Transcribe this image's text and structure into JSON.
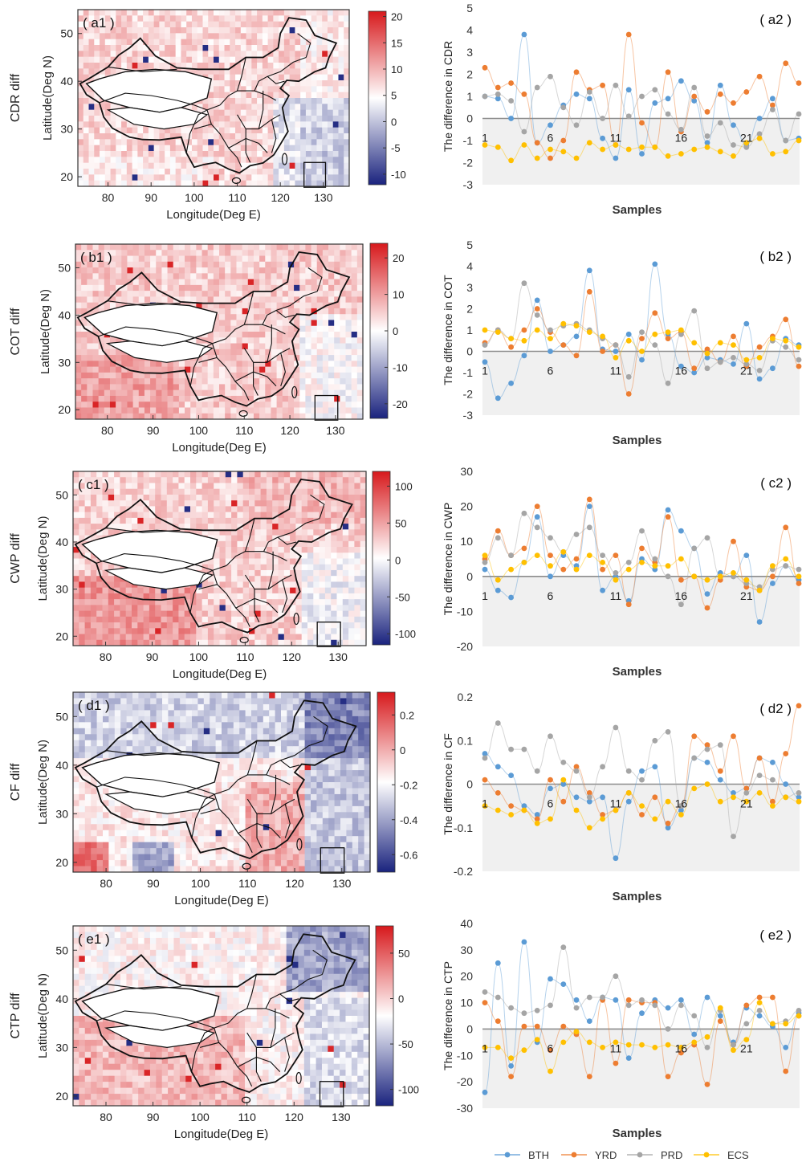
{
  "chart_data": [
    {
      "panel": "a1",
      "type": "heatmap",
      "panel_label": "( a1 )",
      "row_label": "CDR diff",
      "xlabel": "Longitude(Deg E)",
      "ylabel": "Latitude(Deg N)",
      "xticks": [
        "80",
        "90",
        "100",
        "110",
        "120",
        "130"
      ],
      "yticks": [
        "20",
        "30",
        "40",
        "50"
      ],
      "xlim": [
        73,
        136
      ],
      "ylim": [
        18,
        55
      ],
      "colorbar_ticks": [
        "20",
        "15",
        "10",
        "5",
        "0",
        "-5",
        "-10"
      ],
      "colorbar_range": [
        -12,
        21
      ],
      "pattern": "mostly weak positive over land and west; negative (blue) over sea to the east and south-east",
      "map_features": [
        "China province boundaries",
        "South China Sea inset box"
      ]
    },
    {
      "panel": "a2",
      "type": "line",
      "panel_label": "( a2 )",
      "xlabel": "Samples",
      "ylabel": "The difference in CDR",
      "ylim": [
        -3,
        5
      ],
      "yticks": [
        "5",
        "4",
        "3",
        "2",
        "1",
        "0",
        "-1",
        "-2",
        "-3"
      ],
      "xticks": [
        "1",
        "6",
        "11",
        "16",
        "21"
      ],
      "series": [
        {
          "name": "BTH",
          "color": "#5b9bd5",
          "values": [
            1.0,
            0.9,
            0.0,
            3.8,
            -1.1,
            -0.3,
            0.6,
            1.1,
            0.9,
            -0.9,
            -1.8,
            1.3,
            -1.6,
            0.7,
            0.9,
            1.7,
            0.8,
            -1.1,
            1.5,
            -0.3,
            -1.2,
            0.0,
            0.9,
            -1.0,
            -0.9
          ]
        },
        {
          "name": "YRD",
          "color": "#ed7d31",
          "values": [
            2.3,
            1.4,
            1.6,
            1.1,
            -1.1,
            -1.8,
            -1.0,
            2.1,
            1.3,
            1.5,
            -1.2,
            3.8,
            -0.2,
            -1.3,
            2.1,
            -0.6,
            1.0,
            0.3,
            1.1,
            0.7,
            1.2,
            1.9,
            0.6,
            2.5,
            1.6
          ]
        },
        {
          "name": "PRD",
          "color": "#a5a5a5",
          "values": [
            1.0,
            1.1,
            0.8,
            -0.6,
            1.4,
            1.9,
            0.5,
            -0.3,
            1.2,
            0.0,
            1.5,
            0.1,
            1.0,
            1.3,
            0.2,
            -0.5,
            1.4,
            -0.8,
            -0.2,
            -1.2,
            -1.3,
            -0.7,
            0.4,
            -1.0,
            0.2
          ]
        },
        {
          "name": "ECS",
          "color": "#ffc000",
          "values": [
            -1.2,
            -1.3,
            -1.9,
            -1.2,
            -1.8,
            -1.4,
            -1.5,
            -1.8,
            -1.1,
            -1.4,
            -1.2,
            -1.4,
            -1.3,
            -1.3,
            -1.7,
            -1.6,
            -1.4,
            -1.3,
            -1.5,
            -1.7,
            -1.1,
            -0.9,
            -1.6,
            -1.5,
            -1.0
          ]
        }
      ]
    },
    {
      "panel": "b1",
      "type": "heatmap",
      "panel_label": "( b1 )",
      "row_label": "COT diff",
      "xlabel": "Longitude(Deg E)",
      "ylabel": "Latitude(Deg N)",
      "xticks": [
        "80",
        "90",
        "100",
        "110",
        "120",
        "130"
      ],
      "yticks": [
        "20",
        "30",
        "40",
        "50"
      ],
      "xlim": [
        73,
        136
      ],
      "ylim": [
        18,
        55
      ],
      "colorbar_ticks": [
        "20",
        "10",
        "0",
        "-10",
        "-20"
      ],
      "colorbar_range": [
        -24,
        24
      ],
      "pattern": "widespread positive (red), strongest over south-west and Tibetan plateau margins",
      "map_features": [
        "China province boundaries",
        "South China Sea inset box"
      ]
    },
    {
      "panel": "b2",
      "type": "line",
      "panel_label": "( b2 )",
      "xlabel": "Samples",
      "ylabel": "The difference in COT",
      "ylim": [
        -3,
        5
      ],
      "yticks": [
        "5",
        "4",
        "3",
        "2",
        "1",
        "0",
        "-1",
        "-2",
        "-3"
      ],
      "xticks": [
        "1",
        "6",
        "11",
        "16",
        "21"
      ],
      "series": [
        {
          "name": "BTH",
          "color": "#5b9bd5",
          "values": [
            -0.5,
            -2.2,
            -1.5,
            -0.2,
            2.4,
            0.0,
            0.3,
            0.7,
            3.8,
            0.1,
            0.0,
            0.8,
            -0.4,
            4.1,
            0.8,
            -0.7,
            -1.0,
            -0.3,
            -0.4,
            -0.6,
            1.3,
            -1.3,
            -0.8,
            0.6,
            0.3
          ]
        },
        {
          "name": "YRD",
          "color": "#ed7d31",
          "values": [
            0.4,
            1.0,
            0.2,
            1.0,
            2.0,
            0.9,
            0.3,
            -0.2,
            2.8,
            0.0,
            0.3,
            -2.0,
            0.6,
            1.8,
            0.6,
            0.9,
            -0.8,
            0.1,
            -0.5,
            0.7,
            -0.7,
            0.2,
            0.7,
            1.5,
            -0.7
          ]
        },
        {
          "name": "PRD",
          "color": "#a5a5a5",
          "values": [
            0.3,
            1.0,
            0.6,
            3.2,
            1.7,
            1.0,
            1.2,
            1.3,
            1.0,
            0.6,
            0.3,
            -1.2,
            0.9,
            0.3,
            -1.5,
            0.8,
            1.9,
            -0.8,
            -0.5,
            -0.3,
            -0.6,
            -0.9,
            0.5,
            0.2,
            -0.4
          ]
        },
        {
          "name": "ECS",
          "color": "#ffc000",
          "values": [
            1.0,
            0.9,
            0.6,
            0.5,
            1.0,
            0.6,
            1.3,
            1.2,
            0.9,
            0.7,
            -0.3,
            0.5,
            0.0,
            0.8,
            0.9,
            1.0,
            0.4,
            -0.1,
            0.4,
            0.3,
            -0.4,
            -0.3,
            0.6,
            0.5,
            0.2
          ]
        }
      ]
    },
    {
      "panel": "c1",
      "type": "heatmap",
      "panel_label": "( c1 )",
      "row_label": "CWP diff",
      "xlabel": "Longitude(Deg E)",
      "ylabel": "Latitude(Deg N)",
      "xticks": [
        "80",
        "90",
        "100",
        "110",
        "120",
        "130"
      ],
      "yticks": [
        "20",
        "30",
        "40",
        "50"
      ],
      "xlim": [
        73,
        136
      ],
      "ylim": [
        18,
        55
      ],
      "colorbar_ticks": [
        "100",
        "50",
        "0",
        "-50",
        "-100"
      ],
      "colorbar_range": [
        -115,
        120
      ],
      "pattern": "positive over land, especially south-west and north-east; near zero to slightly negative over sea",
      "map_features": [
        "China province boundaries",
        "South China Sea inset box"
      ]
    },
    {
      "panel": "c2",
      "type": "line",
      "panel_label": "( c2 )",
      "xlabel": "Samples",
      "ylabel": "The difference in CWP",
      "ylim": [
        -20,
        30
      ],
      "yticks": [
        "30",
        "20",
        "10",
        "0",
        "-10",
        "-20"
      ],
      "xticks": [
        "1",
        "6",
        "11",
        "16",
        "21"
      ],
      "series": [
        {
          "name": "BTH",
          "color": "#5b9bd5",
          "values": [
            2,
            -4,
            -6,
            4,
            17,
            0,
            6,
            3,
            20,
            -4,
            0,
            -7,
            5,
            2,
            19,
            13,
            8,
            -5,
            1,
            0,
            6,
            -13,
            -2,
            3,
            -1
          ]
        },
        {
          "name": "YRD",
          "color": "#ed7d31",
          "values": [
            5,
            13,
            6,
            8,
            20,
            6,
            2,
            5,
            22,
            2,
            6,
            -8,
            8,
            4,
            17,
            -1,
            0,
            -9,
            -1,
            10,
            -3,
            -4,
            0,
            14,
            -2
          ]
        },
        {
          "name": "PRD",
          "color": "#a5a5a5",
          "values": [
            4,
            11,
            6,
            18,
            14,
            11,
            7,
            12,
            14,
            6,
            1,
            4,
            13,
            5,
            0,
            -8,
            8,
            11,
            0,
            0,
            -2,
            -3,
            2,
            3,
            2
          ]
        },
        {
          "name": "ECS",
          "color": "#ffc000",
          "values": [
            6,
            -1,
            2,
            4,
            6,
            3,
            7,
            2,
            6,
            4,
            -1,
            2,
            4,
            3,
            3,
            5,
            0,
            -1,
            0,
            1,
            -1,
            -4,
            3,
            5,
            0
          ]
        }
      ]
    },
    {
      "panel": "d1",
      "type": "heatmap",
      "panel_label": "( d1 )",
      "row_label": "CF diff",
      "xlabel": "Longitude(Deg E)",
      "ylabel": "Latitude(Deg N)",
      "xticks": [
        "80",
        "90",
        "100",
        "110",
        "120",
        "130"
      ],
      "yticks": [
        "20",
        "30",
        "40",
        "50"
      ],
      "xlim": [
        73,
        136
      ],
      "ylim": [
        18,
        55
      ],
      "colorbar_ticks": [
        "0.2",
        "0",
        "-0.2",
        "-0.4",
        "-0.6"
      ],
      "colorbar_range": [
        -0.7,
        0.33
      ],
      "pattern": "mixed; positive over south-west and east China, negative (blue) over northern areas and surrounding seas",
      "map_features": [
        "China province boundaries",
        "South China Sea inset box"
      ]
    },
    {
      "panel": "d2",
      "type": "line",
      "panel_label": "( d2 )",
      "xlabel": "Samples",
      "ylabel": "The difference in CF",
      "ylim": [
        -0.2,
        0.2
      ],
      "yticks": [
        "0.2",
        "0.1",
        "0",
        "-0.1",
        "-0.2"
      ],
      "xticks": [
        "1",
        "6",
        "11",
        "16",
        "21"
      ],
      "series": [
        {
          "name": "BTH",
          "color": "#5b9bd5",
          "values": [
            0.07,
            0.04,
            0.02,
            -0.05,
            -0.07,
            -0.01,
            0.0,
            -0.03,
            -0.04,
            -0.03,
            -0.17,
            -0.04,
            0.03,
            0.04,
            -0.1,
            -0.06,
            0.06,
            0.05,
            0.01,
            -0.02,
            -0.01,
            0.06,
            0.05,
            0.0,
            -0.03
          ]
        },
        {
          "name": "YRD",
          "color": "#ed7d31",
          "values": [
            0.01,
            -0.02,
            -0.05,
            -0.06,
            -0.08,
            0.01,
            -0.04,
            0.04,
            -0.02,
            -0.07,
            -0.06,
            -0.02,
            -0.07,
            -0.03,
            -0.09,
            -0.05,
            0.11,
            0.09,
            0.03,
            0.11,
            -0.01,
            0.06,
            -0.04,
            0.07,
            0.18
          ]
        },
        {
          "name": "PRD",
          "color": "#a5a5a5",
          "values": [
            0.06,
            0.14,
            0.08,
            0.08,
            0.03,
            0.11,
            0.05,
            0.03,
            -0.03,
            0.04,
            0.13,
            0.03,
            0.01,
            0.1,
            0.12,
            -0.05,
            0.06,
            0.08,
            0.09,
            -0.12,
            -0.02,
            0.02,
            0.01,
            -0.03,
            -0.02
          ]
        },
        {
          "name": "ECS",
          "color": "#ffc000",
          "values": [
            -0.05,
            -0.06,
            -0.07,
            -0.06,
            -0.09,
            -0.08,
            0.01,
            -0.06,
            -0.1,
            -0.08,
            -0.06,
            -0.02,
            -0.05,
            -0.08,
            -0.04,
            -0.07,
            -0.01,
            0.0,
            -0.04,
            -0.03,
            -0.04,
            -0.02,
            -0.05,
            -0.03,
            -0.04
          ]
        }
      ]
    },
    {
      "panel": "e1",
      "type": "heatmap",
      "panel_label": "( e1 )",
      "row_label": "CTP diff",
      "xlabel": "Longitude(Deg E)",
      "ylabel": "Latitude(Deg N)",
      "xticks": [
        "80",
        "90",
        "100",
        "110",
        "120",
        "130"
      ],
      "yticks": [
        "20",
        "30",
        "40",
        "50"
      ],
      "xlim": [
        73,
        136
      ],
      "ylim": [
        18,
        55
      ],
      "colorbar_ticks": [
        "50",
        "0",
        "-50",
        "-100"
      ],
      "colorbar_range": [
        -118,
        80
      ],
      "pattern": "positive over south-west and south China; negative (blue) over north-east and surrounding seas",
      "map_features": [
        "China province boundaries",
        "South China Sea inset box"
      ]
    },
    {
      "panel": "e2",
      "type": "line",
      "panel_label": "( e2 )",
      "xlabel": "Samples",
      "ylabel": "The difference in CTP",
      "ylim": [
        -30,
        40
      ],
      "yticks": [
        "40",
        "30",
        "20",
        "10",
        "0",
        "-10",
        "-20",
        "-30"
      ],
      "xticks": [
        "1",
        "6",
        "11",
        "16",
        "21"
      ],
      "series": [
        {
          "name": "BTH",
          "color": "#5b9bd5",
          "values": [
            -24,
            25,
            -14,
            33,
            -5,
            19,
            17,
            11,
            3,
            12,
            11,
            -11,
            6,
            11,
            8,
            11,
            -2,
            12,
            5,
            -5,
            8,
            5,
            1,
            -7,
            6
          ]
        },
        {
          "name": "YRD",
          "color": "#ed7d31",
          "values": [
            10,
            3,
            -18,
            1,
            1,
            -8,
            1,
            -2,
            -18,
            11,
            -13,
            11,
            10,
            10,
            -18,
            -9,
            -6,
            -21,
            3,
            -6,
            9,
            12,
            12,
            -16,
            5
          ]
        },
        {
          "name": "PRD",
          "color": "#a5a5a5",
          "values": [
            14,
            12,
            8,
            6,
            7,
            9,
            31,
            8,
            12,
            12,
            20,
            9,
            11,
            9,
            0,
            9,
            5,
            -7,
            7,
            -6,
            2,
            7,
            2,
            3,
            7
          ]
        },
        {
          "name": "ECS",
          "color": "#ffc000",
          "values": [
            -7,
            -7,
            -11,
            -8,
            -4,
            -16,
            -5,
            -1,
            -5,
            -7,
            -5,
            -6,
            -6,
            -7,
            -6,
            -7,
            -5,
            -3,
            8,
            -8,
            -4,
            10,
            2,
            2,
            5
          ]
        }
      ]
    }
  ],
  "legend": [
    {
      "name": "BTH",
      "color": "#5b9bd5"
    },
    {
      "name": "YRD",
      "color": "#ed7d31"
    },
    {
      "name": "PRD",
      "color": "#a5a5a5"
    },
    {
      "name": "ECS",
      "color": "#ffc000"
    }
  ],
  "colors": {
    "positive": "#e5191c",
    "neutral": "#ffffff",
    "negative": "#1a2a8c",
    "zero_line": "#8c8c8c",
    "shade": "#f0f0f0",
    "map_outline": "#111111"
  }
}
